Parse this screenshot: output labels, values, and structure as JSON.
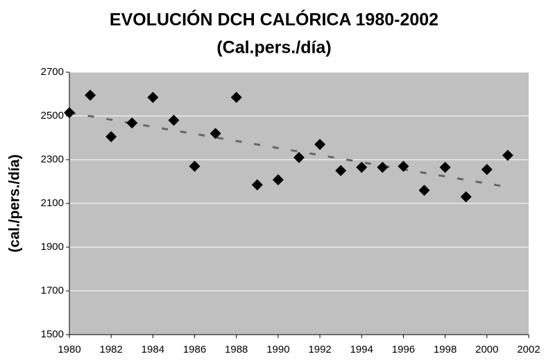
{
  "chart_data": {
    "type": "scatter",
    "title": "EVOLUCIÓN DCH CALÓRICA 1980-2002",
    "subtitle": "(Cal.pers./día)",
    "y_label": "(cal./pers./día)",
    "x": [
      1980,
      1981,
      1982,
      1983,
      1984,
      1985,
      1986,
      1987,
      1988,
      1989,
      1990,
      1991,
      1992,
      1993,
      1994,
      1995,
      1996,
      1997,
      1998,
      1999,
      2000,
      2001
    ],
    "values": [
      2515,
      2595,
      2405,
      2468,
      2585,
      2480,
      2270,
      2420,
      2585,
      2185,
      2208,
      2310,
      2370,
      2250,
      2265,
      2265,
      2270,
      2160,
      2265,
      2130,
      2255,
      2320
    ],
    "color": "#000000",
    "trendline": {
      "x": [
        1980,
        2001
      ],
      "values": [
        2515,
        2175
      ],
      "color": "#666666"
    },
    "xlim": [
      1980,
      2002
    ],
    "xticks": [
      1980,
      1982,
      1984,
      1986,
      1988,
      1990,
      1992,
      1994,
      1996,
      1998,
      2000,
      2002
    ],
    "ylim": [
      1500,
      2700
    ],
    "yticks": [
      1500,
      1700,
      1900,
      2100,
      2300,
      2500,
      2700
    ],
    "grid": true,
    "background": "#c0c0c0"
  }
}
